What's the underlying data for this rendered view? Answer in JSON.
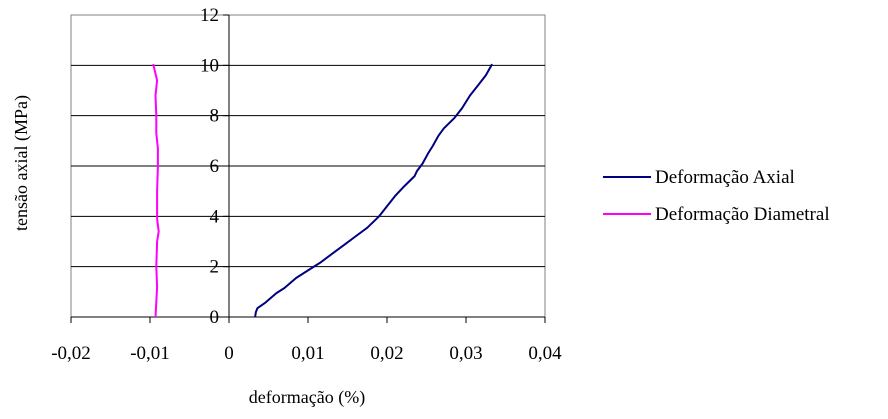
{
  "chart_data": {
    "type": "line",
    "xlabel": "deformação (%)",
    "ylabel": "tensão axial (MPa)",
    "xlim": [
      -0.02,
      0.04
    ],
    "ylim": [
      0,
      12
    ],
    "x_ticks": [
      -0.02,
      -0.01,
      0,
      0.01,
      0.02,
      0.03,
      0.04
    ],
    "x_tick_labels": [
      "-0,02",
      "-0,01",
      "0",
      "0,01",
      "0,02",
      "0,03",
      "0,04"
    ],
    "y_ticks": [
      0,
      2,
      4,
      6,
      8,
      10,
      12
    ],
    "y_tick_labels": [
      "0",
      "2",
      "4",
      "6",
      "8",
      "10",
      "12"
    ],
    "grid": "horizontal",
    "legend_position": "right",
    "series": [
      {
        "name": "Deformação Axial",
        "color": "#000080",
        "points": [
          [
            0.0033,
            0.0
          ],
          [
            0.0034,
            0.2
          ],
          [
            0.0036,
            0.35
          ],
          [
            0.0045,
            0.55
          ],
          [
            0.006,
            0.95
          ],
          [
            0.007,
            1.15
          ],
          [
            0.0085,
            1.55
          ],
          [
            0.01,
            1.85
          ],
          [
            0.0115,
            2.15
          ],
          [
            0.013,
            2.5
          ],
          [
            0.0145,
            2.85
          ],
          [
            0.016,
            3.2
          ],
          [
            0.0175,
            3.55
          ],
          [
            0.019,
            4.0
          ],
          [
            0.02,
            4.4
          ],
          [
            0.021,
            4.8
          ],
          [
            0.0222,
            5.2
          ],
          [
            0.0235,
            5.6
          ],
          [
            0.0238,
            5.8
          ],
          [
            0.0245,
            6.1
          ],
          [
            0.0252,
            6.5
          ],
          [
            0.0258,
            6.8
          ],
          [
            0.0265,
            7.2
          ],
          [
            0.0272,
            7.5
          ],
          [
            0.0285,
            7.9
          ],
          [
            0.0295,
            8.3
          ],
          [
            0.0305,
            8.8
          ],
          [
            0.0315,
            9.2
          ],
          [
            0.0325,
            9.6
          ],
          [
            0.0333,
            10.05
          ]
        ]
      },
      {
        "name": "Deformação Diametral",
        "color": "#ff00ff",
        "points": [
          [
            -0.0093,
            0.0
          ],
          [
            -0.0092,
            0.6
          ],
          [
            -0.0091,
            1.2
          ],
          [
            -0.0092,
            2.0
          ],
          [
            -0.0091,
            3.0
          ],
          [
            -0.0089,
            3.4
          ],
          [
            -0.0091,
            3.9
          ],
          [
            -0.0091,
            5.0
          ],
          [
            -0.009,
            6.0
          ],
          [
            -0.009,
            6.7
          ],
          [
            -0.0092,
            7.3
          ],
          [
            -0.0092,
            8.0
          ],
          [
            -0.0093,
            8.8
          ],
          [
            -0.0091,
            9.4
          ],
          [
            -0.0094,
            9.8
          ],
          [
            -0.0096,
            10.05
          ]
        ]
      }
    ]
  }
}
